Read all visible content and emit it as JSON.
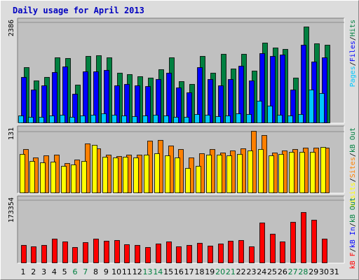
{
  "chart_data": {
    "type": "bar",
    "title": "Daily usage for April 2013",
    "categories": [
      "1",
      "2",
      "3",
      "4",
      "5",
      "6",
      "7",
      "8",
      "9",
      "10",
      "11",
      "12",
      "13",
      "14",
      "15",
      "16",
      "17",
      "18",
      "19",
      "20",
      "21",
      "22",
      "23",
      "24",
      "25",
      "26",
      "27",
      "28",
      "29",
      "30",
      "31"
    ],
    "weekend_days": [
      "6",
      "7",
      "13",
      "14",
      "20",
      "21",
      "27",
      "28"
    ],
    "panels": [
      {
        "id": "hits",
        "ymax_label": "2386",
        "ylim": [
          0,
          2386
        ],
        "side_labels": [
          {
            "text": "Pages",
            "color": "#00c8ff"
          },
          {
            "text": "Files",
            "color": "#0000ff"
          },
          {
            "text": "Hits",
            "color": "#008040"
          }
        ],
        "series": [
          {
            "name": "Hits",
            "color": "#008040",
            "values": [
              1310,
              1000,
              1090,
              1560,
              1530,
              900,
              1580,
              1600,
              1550,
              1190,
              1150,
              1100,
              1070,
              1260,
              1560,
              980,
              920,
              1580,
              1180,
              1630,
              1280,
              1630,
              1240,
              1910,
              1790,
              1750,
              1070,
              2280,
              1890,
              1860,
              0
            ]
          },
          {
            "name": "Files",
            "color": "#0000ff",
            "values": [
              1080,
              780,
              880,
              1200,
              1330,
              690,
              1220,
              1210,
              1250,
              880,
              920,
              880,
              870,
              1030,
              1180,
              840,
              720,
              1320,
              1030,
              880,
              1030,
              1350,
              1000,
              1660,
              1590,
              1620,
              780,
              1850,
              1450,
              1550,
              0
            ]
          },
          {
            "name": "Pages",
            "color": "#00c8ff",
            "values": [
              170,
              140,
              130,
              160,
              180,
              130,
              170,
              190,
              220,
              180,
              170,
              150,
              160,
              180,
              160,
              140,
              130,
              200,
              190,
              150,
              160,
              210,
              200,
              520,
              400,
              180,
              170,
              200,
              790,
              700,
              0
            ]
          }
        ]
      },
      {
        "id": "visits",
        "ymax_label": "131",
        "ylim": [
          0,
          131
        ],
        "side_labels": [
          {
            "text": "Visits",
            "color": "#ffff00"
          },
          {
            "text": "Sites",
            "color": "#ff8000"
          },
          {
            "text": "kB Out",
            "color": "#008040"
          }
        ],
        "series": [
          {
            "name": "Sites",
            "color": "#ff8000",
            "values": [
              93,
              75,
              80,
              81,
              63,
              71,
              106,
              95,
              81,
              78,
              81,
              82,
              112,
              113,
              101,
              93,
              76,
              84,
              94,
              86,
              90,
              95,
              132,
              124,
              86,
              91,
              94,
              97,
              96,
              96,
              0
            ]
          },
          {
            "name": "Visits",
            "color": "#ffff00",
            "values": [
              83,
              68,
              65,
              67,
              57,
              60,
              68,
              103,
              77,
              76,
              77,
              76,
              82,
              84,
              80,
              75,
              53,
              57,
              81,
              82,
              80,
              83,
              90,
              94,
              80,
              83,
              87,
              88,
              87,
              98,
              0
            ]
          }
        ]
      },
      {
        "id": "kbf",
        "ymax_label": "173354",
        "ylim": [
          0,
          173354
        ],
        "side_labels": [
          {
            "text": "kB F",
            "color": "#ff0000"
          },
          {
            "text": "kB In",
            "color": "#0000ff"
          },
          {
            "text": "kB Out",
            "color": "#008040"
          }
        ],
        "series": [
          {
            "name": "kB F",
            "color": "#ff0000",
            "values": [
              48000,
              44000,
              48000,
              66000,
              58000,
              42000,
              56000,
              66000,
              61000,
              62000,
              50000,
              48000,
              42000,
              53000,
              58000,
              45000,
              48000,
              55000,
              46000,
              53000,
              60000,
              62000,
              45000,
              111000,
              80000,
              58000,
              113000,
              140000,
              118000,
              66000,
              0
            ]
          }
        ]
      }
    ]
  }
}
